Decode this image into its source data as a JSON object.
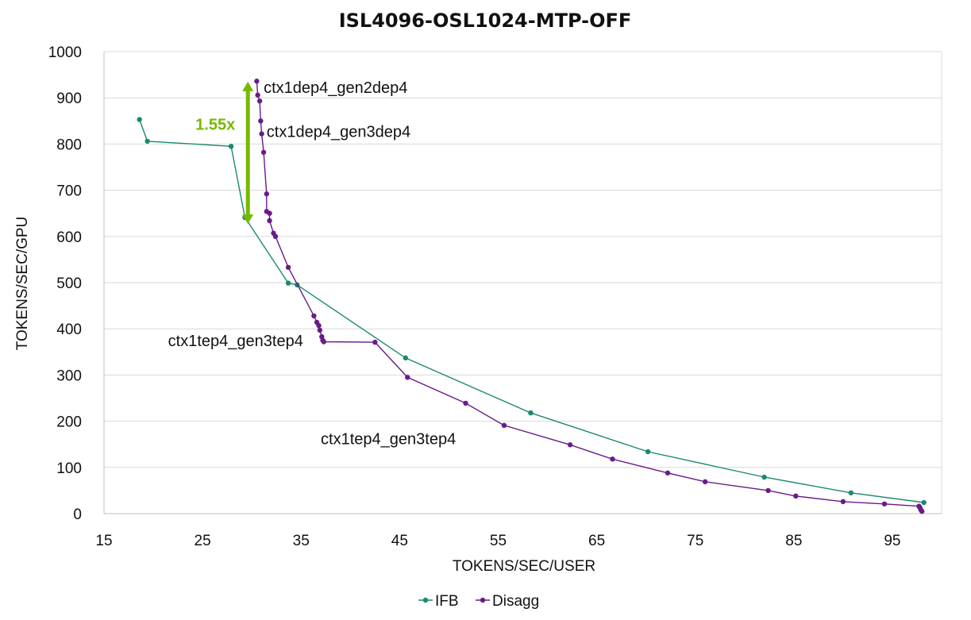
{
  "chart_data": {
    "type": "line",
    "title": "ISL4096-OSL1024-MTP-OFF",
    "xlabel": "TOKENS/SEC/USER",
    "ylabel": "TOKENS/SEC/GPU",
    "xlim": [
      15,
      100
    ],
    "ylim": [
      0,
      1000
    ],
    "xticks": [
      15,
      25,
      35,
      45,
      55,
      65,
      75,
      85,
      95
    ],
    "yticks": [
      0,
      100,
      200,
      300,
      400,
      500,
      600,
      700,
      800,
      900,
      1000
    ],
    "grid": "horizontal",
    "legend": "bottom",
    "series": [
      {
        "name": "IFB",
        "color": "#1a8a6e",
        "points": [
          [
            18.6,
            853
          ],
          [
            19.4,
            806
          ],
          [
            27.9,
            795
          ],
          [
            29.3,
            641
          ],
          [
            33.7,
            499
          ],
          [
            34.6,
            495
          ],
          [
            45.6,
            337
          ],
          [
            58.3,
            218
          ],
          [
            70.2,
            134
          ],
          [
            82.0,
            79
          ],
          [
            90.8,
            45
          ],
          [
            98.2,
            24
          ]
        ]
      },
      {
        "name": "Disagg",
        "color": "#6a1b8a",
        "points": [
          [
            30.5,
            936
          ],
          [
            30.6,
            906
          ],
          [
            30.8,
            893
          ],
          [
            30.9,
            850
          ],
          [
            31.0,
            822
          ],
          [
            31.2,
            782
          ],
          [
            31.5,
            692
          ],
          [
            31.5,
            654
          ],
          [
            31.8,
            650
          ],
          [
            31.8,
            634
          ],
          [
            32.2,
            607
          ],
          [
            32.4,
            600
          ],
          [
            33.7,
            533
          ],
          [
            36.3,
            428
          ],
          [
            36.6,
            414
          ],
          [
            36.8,
            407
          ],
          [
            36.9,
            397
          ],
          [
            37.1,
            383
          ],
          [
            37.2,
            375
          ],
          [
            37.3,
            372
          ],
          [
            42.5,
            371
          ],
          [
            45.8,
            295
          ],
          [
            51.7,
            239
          ],
          [
            55.6,
            191
          ],
          [
            62.3,
            149
          ],
          [
            66.6,
            118
          ],
          [
            72.2,
            88
          ],
          [
            76.0,
            69
          ],
          [
            82.4,
            50
          ],
          [
            85.2,
            38
          ],
          [
            90.0,
            26
          ],
          [
            94.2,
            21
          ],
          [
            97.7,
            16
          ],
          [
            97.8,
            13
          ],
          [
            97.9,
            8
          ],
          [
            98.0,
            5
          ]
        ]
      }
    ],
    "annotations": [
      {
        "text": "ctx1dep4_gen2dep4",
        "x": 31.2,
        "y": 923
      },
      {
        "text": "ctx1dep4_gen3dep4",
        "x": 31.5,
        "y": 827
      },
      {
        "text": "ctx1tep4_gen3tep4",
        "x": 21.5,
        "y": 375
      },
      {
        "text": "ctx1tep4_gen3tep4",
        "x": 37.0,
        "y": 162
      }
    ],
    "ratio_arrow": {
      "label": "1.55x",
      "x": 29.6,
      "y_from": 935,
      "y_to": 627,
      "color": "#76b900"
    }
  }
}
